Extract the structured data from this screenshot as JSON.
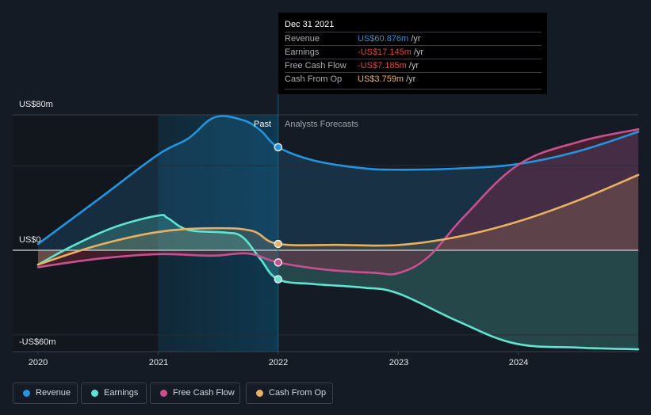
{
  "chart_data": {
    "type": "line",
    "title": "",
    "xlabel": "",
    "ylabel": "",
    "unit": "US$m",
    "x_ticks": [
      "2020",
      "2021",
      "2022",
      "2023",
      "2024"
    ],
    "x_range": [
      2020.0,
      2025.0
    ],
    "y_ticks": [
      {
        "value": 80,
        "label": "US$80m"
      },
      {
        "value": 0,
        "label": "US$0"
      },
      {
        "value": -60,
        "label": "-US$60m"
      }
    ],
    "ylim": [
      -60,
      80
    ],
    "gridlines": [
      80,
      50,
      0,
      -50
    ],
    "past_until": 2022.0,
    "highlight_from": 2021.0,
    "past_label": "Past",
    "forecast_label": "Analysts Forecasts",
    "legend_position": "bottom-left",
    "series": [
      {
        "name": "Revenue",
        "color": "#2394df",
        "points": [
          [
            2020.0,
            3.7
          ],
          [
            2020.5,
            30
          ],
          [
            2021.0,
            56.5
          ],
          [
            2021.25,
            66
          ],
          [
            2021.47,
            78.5
          ],
          [
            2021.7,
            77
          ],
          [
            2021.85,
            71
          ],
          [
            2022.0,
            60.876
          ],
          [
            2022.3,
            53
          ],
          [
            2022.7,
            48.5
          ],
          [
            2023.0,
            47.6
          ],
          [
            2023.5,
            48.3
          ],
          [
            2024.0,
            51
          ],
          [
            2024.5,
            58.5
          ],
          [
            2025.0,
            70
          ]
        ]
      },
      {
        "name": "Earnings",
        "color": "#5ee5d0",
        "points": [
          [
            2020.0,
            -8.5
          ],
          [
            2020.3,
            3
          ],
          [
            2020.65,
            14
          ],
          [
            2021.0,
            20.5
          ],
          [
            2021.08,
            19
          ],
          [
            2021.25,
            12
          ],
          [
            2021.55,
            10.5
          ],
          [
            2021.7,
            8
          ],
          [
            2021.85,
            -5
          ],
          [
            2022.0,
            -17.145
          ],
          [
            2022.3,
            -20
          ],
          [
            2022.7,
            -22
          ],
          [
            2023.0,
            -25.5
          ],
          [
            2023.5,
            -42
          ],
          [
            2023.97,
            -55
          ],
          [
            2024.5,
            -57.5
          ],
          [
            2025.0,
            -58.5
          ]
        ]
      },
      {
        "name": "Free Cash Flow",
        "color": "#c9508f",
        "points": [
          [
            2020.0,
            -10
          ],
          [
            2020.5,
            -5
          ],
          [
            2021.0,
            -2.3
          ],
          [
            2021.45,
            -3.2
          ],
          [
            2021.75,
            -1.9
          ],
          [
            2022.0,
            -7.185
          ],
          [
            2022.4,
            -11.5
          ],
          [
            2022.8,
            -13.3
          ],
          [
            2023.0,
            -13.5
          ],
          [
            2023.25,
            -4
          ],
          [
            2023.55,
            20
          ],
          [
            2024.0,
            50.5
          ],
          [
            2024.5,
            64
          ],
          [
            2025.0,
            71.5
          ]
        ]
      },
      {
        "name": "Cash From Op",
        "color": "#e8b162",
        "points": [
          [
            2020.0,
            -8.5
          ],
          [
            2020.5,
            3
          ],
          [
            2021.0,
            10.8
          ],
          [
            2021.45,
            13
          ],
          [
            2021.78,
            11.5
          ],
          [
            2022.0,
            3.759
          ],
          [
            2022.5,
            3.2
          ],
          [
            2023.0,
            3.1
          ],
          [
            2023.5,
            8
          ],
          [
            2024.0,
            17
          ],
          [
            2024.5,
            29.5
          ],
          [
            2025.0,
            44.5
          ]
        ]
      }
    ]
  },
  "tooltip": {
    "date": "Dec 31 2021",
    "rows": [
      {
        "label": "Revenue",
        "value": "US$60.876m",
        "unit": "/yr",
        "color": "#2394df"
      },
      {
        "label": "Earnings",
        "value": "-US$17.145m",
        "unit": "/yr",
        "color": "#e8413f"
      },
      {
        "label": "Free Cash Flow",
        "value": "-US$7.185m",
        "unit": "/yr",
        "color": "#e8413f"
      },
      {
        "label": "Cash From Op",
        "value": "US$3.759m",
        "unit": "/yr",
        "color": "#e8b162"
      }
    ]
  },
  "legend": [
    {
      "label": "Revenue",
      "color": "#2394df"
    },
    {
      "label": "Earnings",
      "color": "#5ee5d0"
    },
    {
      "label": "Free Cash Flow",
      "color": "#c9508f"
    },
    {
      "label": "Cash From Op",
      "color": "#e8b162"
    }
  ]
}
